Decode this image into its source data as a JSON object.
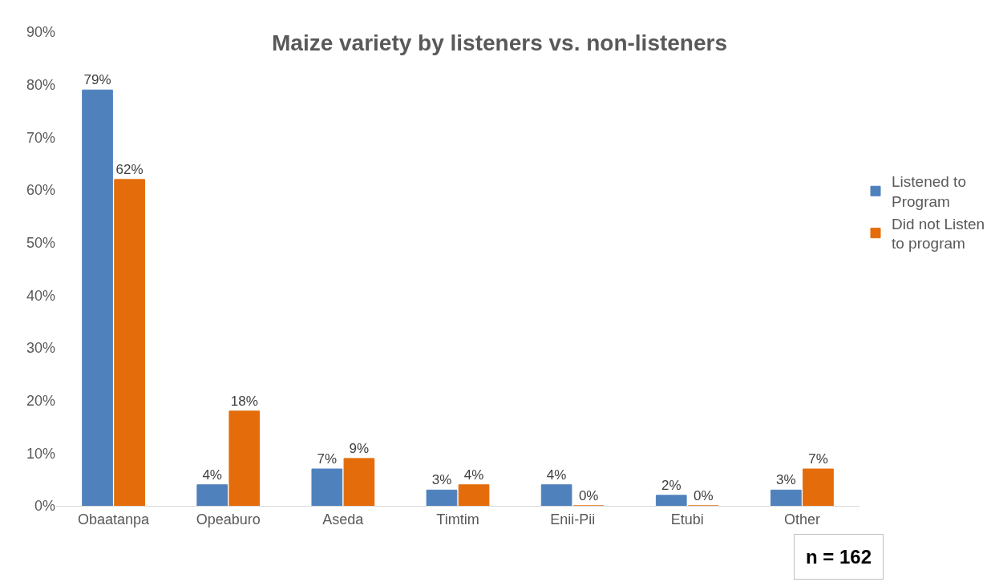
{
  "chart_data": {
    "type": "bar",
    "title": "Maize variety by listeners vs. non-listeners",
    "categories": [
      "Obaatanpa",
      "Opeaburo",
      "Aseda",
      "Timtim",
      "Enii-Pii",
      "Etubi",
      "Other"
    ],
    "series": [
      {
        "name": "Listened to Program",
        "color": "#4f81bd",
        "values": [
          79,
          4,
          7,
          3,
          4,
          2,
          3
        ],
        "value_labels": [
          "79%",
          "4%",
          "7%",
          "3%",
          "4%",
          "2%",
          "3%"
        ]
      },
      {
        "name": "Did not Listen to program",
        "color": "#e46c0a",
        "values": [
          62,
          18,
          9,
          4,
          0,
          0,
          7
        ],
        "value_labels": [
          "62%",
          "18%",
          "9%",
          "4%",
          "0%",
          "0%",
          "7%"
        ]
      }
    ],
    "ylim": [
      0,
      90
    ],
    "yticks": [
      {
        "value": 0,
        "label": "0%"
      },
      {
        "value": 10,
        "label": "10%"
      },
      {
        "value": 20,
        "label": "20%"
      },
      {
        "value": 30,
        "label": "30%"
      },
      {
        "value": 40,
        "label": "40%"
      },
      {
        "value": 50,
        "label": "50%"
      },
      {
        "value": 60,
        "label": "60%"
      },
      {
        "value": 70,
        "label": "70%"
      },
      {
        "value": 80,
        "label": "80%"
      },
      {
        "value": 90,
        "label": "90%"
      }
    ],
    "grid": false,
    "legend": "right",
    "annotations": [
      "n = 162"
    ]
  }
}
